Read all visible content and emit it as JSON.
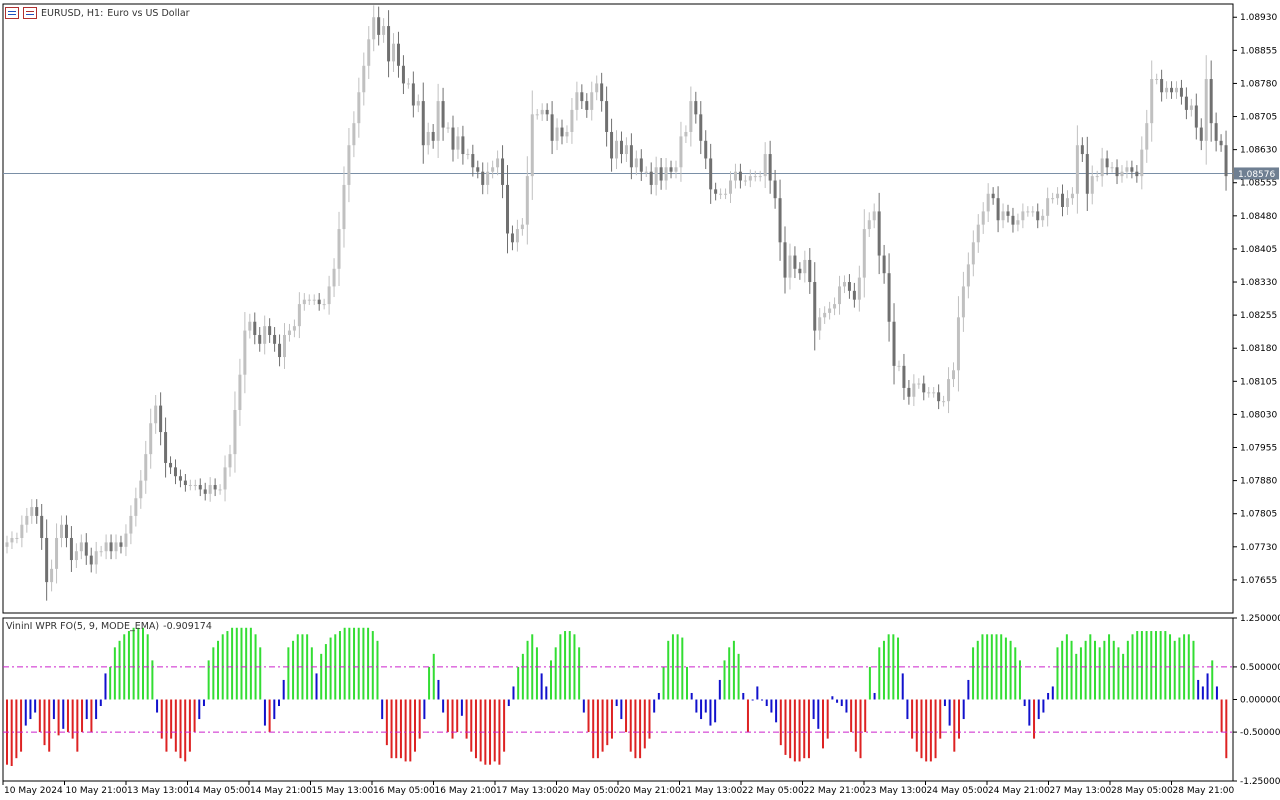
{
  "chart": {
    "symbol_label": "EURUSD, H1:",
    "description": "Euro vs US Dollar",
    "current_price": "1.08576",
    "price_axis": [
      "1.08930",
      "1.08855",
      "1.08780",
      "1.08705",
      "1.08630",
      "1.08555",
      "1.08480",
      "1.08405",
      "1.08330",
      "1.08255",
      "1.08180",
      "1.08105",
      "1.08030",
      "1.07955",
      "1.07880",
      "1.07805",
      "1.07730",
      "1.07655"
    ],
    "time_axis": [
      "10 May 2024",
      "10 May 21:00",
      "13 May 13:00",
      "14 May 05:00",
      "14 May 21:00",
      "15 May 13:00",
      "16 May 05:00",
      "16 May 21:00",
      "17 May 13:00",
      "20 May 05:00",
      "20 May 21:00",
      "21 May 13:00",
      "22 May 05:00",
      "22 May 21:00",
      "23 May 13:00",
      "24 May 05:00",
      "24 May 21:00",
      "27 May 13:00",
      "28 May 05:00",
      "28 May 21:00"
    ],
    "colors": {
      "bull": "#c0c0c0",
      "bear": "#707070",
      "price_line": "#7a8fa6",
      "background": "#ffffff"
    }
  },
  "indicator": {
    "name": "VininI WPR FO(5, 9, MODE_EMA)",
    "value": "-0.909174",
    "axis": [
      "1.250000",
      "0.500000",
      "0.000000",
      "-0.500000",
      "-1.250000"
    ],
    "levels": [
      0.5,
      -0.5
    ],
    "colors": {
      "up": "#33dd33",
      "down": "#dd2222",
      "neutral": "#1111cc",
      "level": "#cc22cc"
    }
  },
  "chart_data": [
    {
      "type": "candlestick",
      "title": "EURUSD, H1: Euro vs US Dollar",
      "x_start": "10 May 2024",
      "y_range": [
        1.0758,
        1.0896
      ],
      "current_price": 1.08576,
      "close": [
        1.0774,
        1.0775,
        1.0775,
        1.0778,
        1.078,
        1.0782,
        1.078,
        1.0775,
        1.0765,
        1.0768,
        1.0775,
        1.0778,
        1.0775,
        1.077,
        1.0772,
        1.0774,
        1.0771,
        1.0769,
        1.0772,
        1.0772,
        1.0774,
        1.0772,
        1.0774,
        1.0773,
        1.0776,
        1.078,
        1.0784,
        1.0788,
        1.0794,
        1.0801,
        1.0805,
        1.0799,
        1.0792,
        1.0791,
        1.0789,
        1.0788,
        1.0787,
        1.0787,
        1.0787,
        1.0786,
        1.0785,
        1.0787,
        1.0786,
        1.0786,
        1.0791,
        1.0794,
        1.0804,
        1.0812,
        1.0822,
        1.0824,
        1.0821,
        1.0819,
        1.0823,
        1.0821,
        1.0819,
        1.0816,
        1.0821,
        1.0822,
        1.0823,
        1.0828,
        1.0829,
        1.0829,
        1.0829,
        1.0828,
        1.0828,
        1.0832,
        1.0836,
        1.0845,
        1.0855,
        1.0864,
        1.0869,
        1.0876,
        1.0882,
        1.0888,
        1.0893,
        1.0889,
        1.0891,
        1.0883,
        1.0887,
        1.0882,
        1.0878,
        1.0878,
        1.0873,
        1.0874,
        1.0864,
        1.0867,
        1.0865,
        1.0874,
        1.0868,
        1.0868,
        1.0863,
        1.0866,
        1.0862,
        1.0862,
        1.0859,
        1.0858,
        1.0855,
        1.0858,
        1.0859,
        1.0861,
        1.0855,
        1.0844,
        1.0842,
        1.0845,
        1.0846,
        1.0857,
        1.0871,
        1.0871,
        1.0872,
        1.0871,
        1.0865,
        1.0868,
        1.0866,
        1.0867,
        1.0872,
        1.0876,
        1.0874,
        1.0872,
        1.0876,
        1.0878,
        1.0874,
        1.0867,
        1.0861,
        1.0865,
        1.0862,
        1.0864,
        1.0859,
        1.0861,
        1.0858,
        1.0858,
        1.0855,
        1.0859,
        1.0856,
        1.0859,
        1.0858,
        1.0859,
        1.0866,
        1.0867,
        1.0874,
        1.0871,
        1.0865,
        1.0861,
        1.0854,
        1.0853,
        1.0853,
        1.0853,
        1.0856,
        1.0858,
        1.0856,
        1.0856,
        1.0857,
        1.0857,
        1.0857,
        1.0862,
        1.0856,
        1.0852,
        1.0842,
        1.0834,
        1.0839,
        1.0836,
        1.0835,
        1.0838,
        1.0833,
        1.0822,
        1.0825,
        1.0826,
        1.0827,
        1.0828,
        1.0832,
        1.0833,
        1.0831,
        1.0829,
        1.0834,
        1.0845,
        1.0847,
        1.0849,
        1.0839,
        1.0835,
        1.0824,
        1.0814,
        1.0814,
        1.0809,
        1.0807,
        1.081,
        1.081,
        1.0808,
        1.0808,
        1.0808,
        1.0806,
        1.0806,
        1.0811,
        1.0813,
        1.0825,
        1.0832,
        1.0837,
        1.0842,
        1.0846,
        1.0849,
        1.0853,
        1.0852,
        1.0847,
        1.0849,
        1.0848,
        1.0846,
        1.0847,
        1.0849,
        1.0849,
        1.0849,
        1.0847,
        1.0848,
        1.0852,
        1.0852,
        1.0853,
        1.085,
        1.0852,
        1.0853,
        1.0864,
        1.0862,
        1.0853,
        1.0857,
        1.0857,
        1.0861,
        1.0859,
        1.0859,
        1.0857,
        1.0858,
        1.0859,
        1.0858,
        1.0857,
        1.0863,
        1.0869,
        1.0879,
        1.0879,
        1.0876,
        1.0877,
        1.0876,
        1.0877,
        1.0875,
        1.0872,
        1.0873,
        1.0868,
        1.0865,
        1.0879,
        1.0869,
        1.0865,
        1.0864,
        1.0857
      ]
    },
    {
      "type": "bar",
      "title": "VininI WPR FO(5, 9, MODE_EMA) -0.909174",
      "y_range": [
        -1.25,
        1.25
      ],
      "levels": [
        0.5,
        -0.5
      ],
      "values": [
        -1.0,
        -1.02,
        -0.9,
        -0.8,
        -0.4,
        -0.3,
        -0.2,
        -0.5,
        -0.7,
        -0.8,
        -0.3,
        -0.55,
        -0.45,
        -0.5,
        -0.6,
        -0.8,
        -0.5,
        -0.3,
        -0.5,
        -0.3,
        -0.1,
        0.4,
        0.5,
        0.8,
        0.9,
        1.0,
        1.05,
        1.1,
        1.1,
        1.1,
        1.0,
        0.6,
        -0.2,
        -0.6,
        -0.8,
        -0.6,
        -0.8,
        -0.9,
        -0.95,
        -0.8,
        -0.5,
        -0.3,
        -0.1,
        0.6,
        0.8,
        0.9,
        1.0,
        1.05,
        1.1,
        1.1,
        1.1,
        1.1,
        1.1,
        1.0,
        0.8,
        -0.4,
        -0.5,
        -0.3,
        -0.1,
        0.3,
        0.8,
        0.9,
        1.0,
        1.0,
        1.0,
        0.8,
        0.4,
        0.7,
        0.85,
        0.95,
        1.0,
        1.05,
        1.1,
        1.1,
        1.1,
        1.1,
        1.1,
        1.1,
        1.05,
        0.9,
        -0.3,
        -0.7,
        -0.9,
        -0.9,
        -0.9,
        -0.95,
        -0.95,
        -0.8,
        -0.6,
        -0.3,
        0.5,
        0.7,
        0.3,
        -0.2,
        -0.5,
        -0.6,
        -0.5,
        -0.25,
        -0.6,
        -0.8,
        -0.9,
        -0.95,
        -1.0,
        -1.0,
        -0.95,
        -1.0,
        -0.8,
        -0.1,
        0.2,
        0.5,
        0.7,
        0.9,
        1.0,
        0.8,
        0.4,
        0.2,
        0.6,
        0.8,
        1.0,
        1.05,
        1.05,
        1.0,
        0.8,
        -0.2,
        -0.5,
        -0.9,
        -0.9,
        -0.8,
        -0.7,
        -0.6,
        -0.1,
        -0.3,
        -0.5,
        -0.8,
        -0.9,
        -0.9,
        -0.75,
        -0.6,
        -0.2,
        0.1,
        0.5,
        0.9,
        1.0,
        1.0,
        0.95,
        0.5,
        0.1,
        -0.2,
        -0.3,
        -0.2,
        -0.4,
        -0.35,
        0.3,
        0.6,
        0.8,
        0.9,
        0.7,
        0.1,
        -0.5,
        0.0,
        0.2,
        0.0,
        -0.1,
        -0.2,
        -0.35,
        -0.7,
        -0.85,
        -0.9,
        -0.95,
        -0.95,
        -0.9,
        -0.9,
        -0.3,
        -0.45,
        -0.75,
        -0.6,
        0.05,
        -0.05,
        -0.1,
        -0.2,
        -0.5,
        -0.8,
        -0.9,
        -0.5,
        0.5,
        0.1,
        0.8,
        0.9,
        1.0,
        1.0,
        0.95,
        0.4,
        -0.3,
        -0.6,
        -0.8,
        -0.9,
        -0.95,
        -0.95,
        -0.9,
        -0.6,
        -0.1,
        -0.4,
        -0.8,
        -0.6,
        -0.3,
        0.3,
        0.8,
        0.9,
        1.0,
        1.0,
        1.0,
        1.0,
        1.0,
        0.95,
        0.9,
        0.8,
        0.6,
        -0.1,
        -0.4,
        -0.6,
        -0.3,
        -0.2,
        0.1,
        0.2,
        0.8,
        0.9,
        1.0,
        0.9,
        0.7,
        0.8,
        0.9,
        1.0,
        0.9,
        0.8,
        0.9,
        1.0,
        0.9,
        0.8,
        0.7,
        0.9,
        1.0,
        1.05,
        1.05,
        1.05,
        1.05,
        1.05,
        1.05,
        1.05,
        1.0,
        0.9,
        0.95,
        1.0,
        1.0,
        0.9,
        0.3,
        0.2,
        0.4,
        0.6,
        0.2,
        -0.5,
        -0.9
      ]
    }
  ]
}
